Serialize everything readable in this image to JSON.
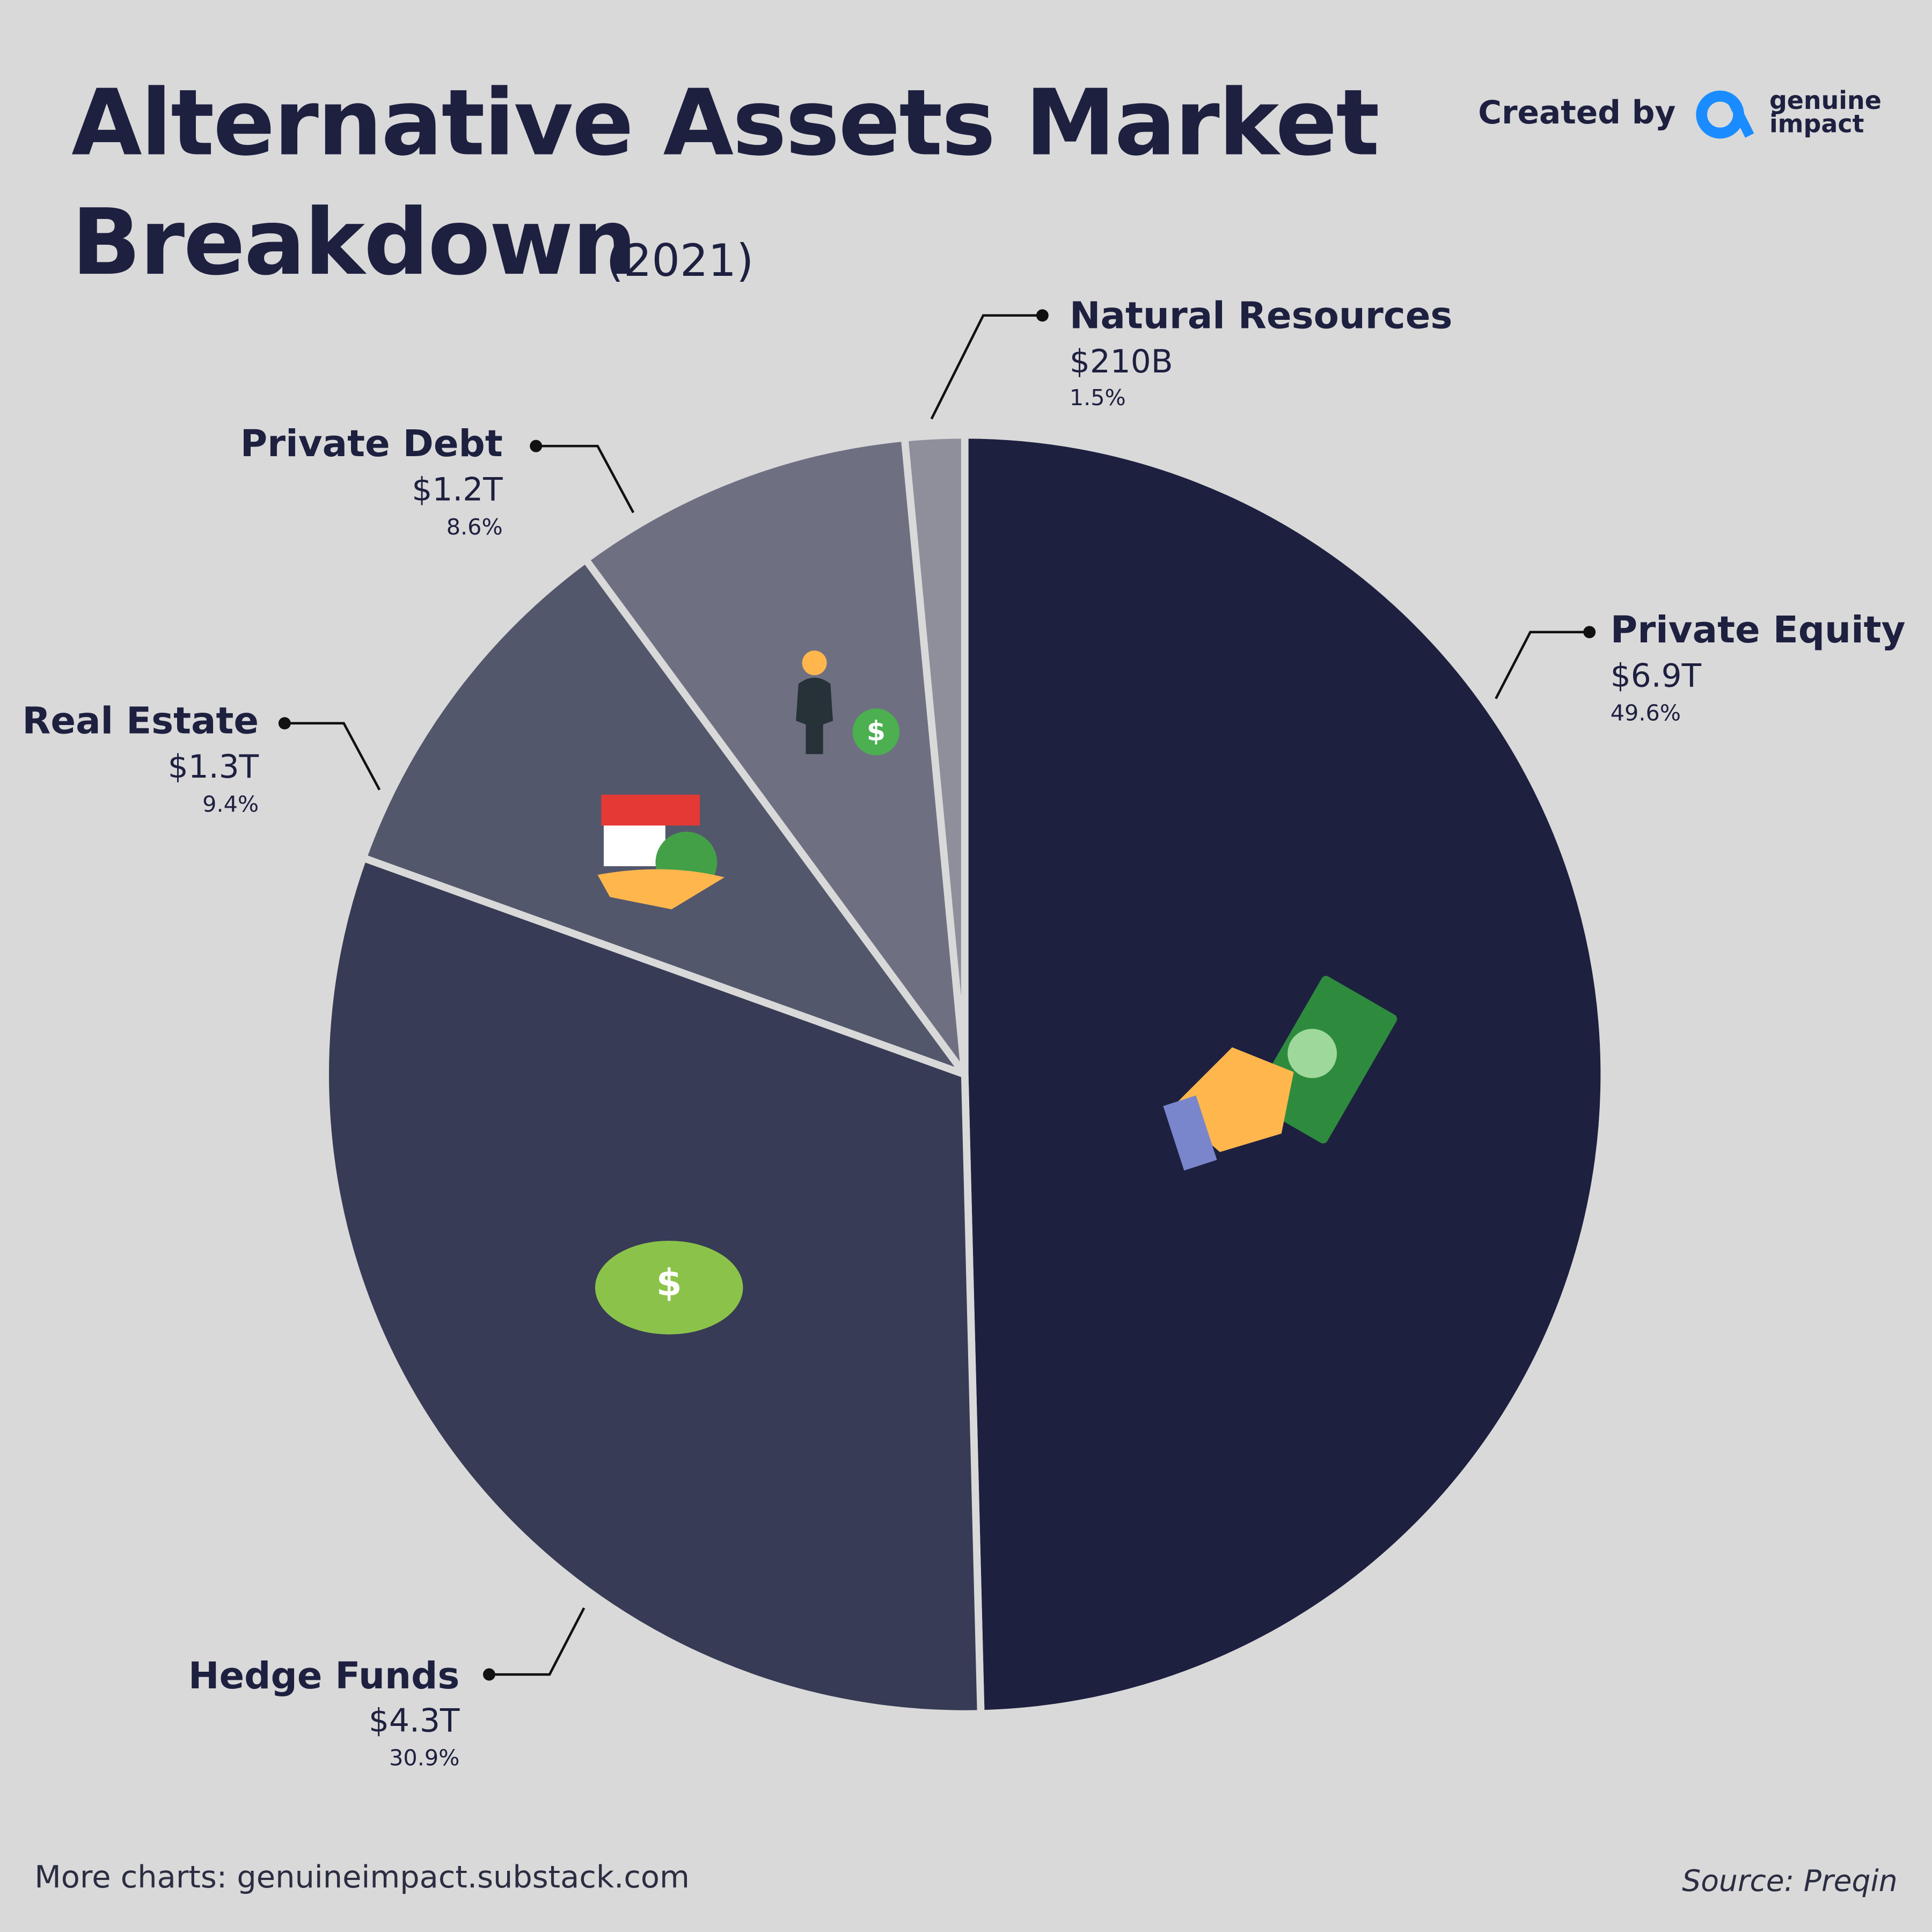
{
  "chart_data": {
    "type": "pie",
    "title": [
      "Alternative Assets Market",
      "Breakdown"
    ],
    "subtitle": "(2021)",
    "credit": "Created by",
    "logo": [
      "genuine",
      "impact"
    ],
    "categories": [
      "Private Equity",
      "Hedge Funds",
      "Real Estate",
      "Private Debt",
      "Natural Resources"
    ],
    "values": [
      49.6,
      30.9,
      9.4,
      8.6,
      1.5
    ],
    "value_labels": [
      "49.6%",
      "30.9%",
      "9.4%",
      "8.6%",
      "1.5%"
    ],
    "amount_labels": [
      "$6.9T",
      "$4.3T",
      "$1.3T",
      "$1.2T",
      "$210B"
    ],
    "colors": [
      "#1e2040",
      "#373b55",
      "#53576b",
      "#6e7082",
      "#8e8f9b"
    ],
    "footer": "More charts: genuineimpact.substack.com",
    "source": "Source: Preqin"
  }
}
